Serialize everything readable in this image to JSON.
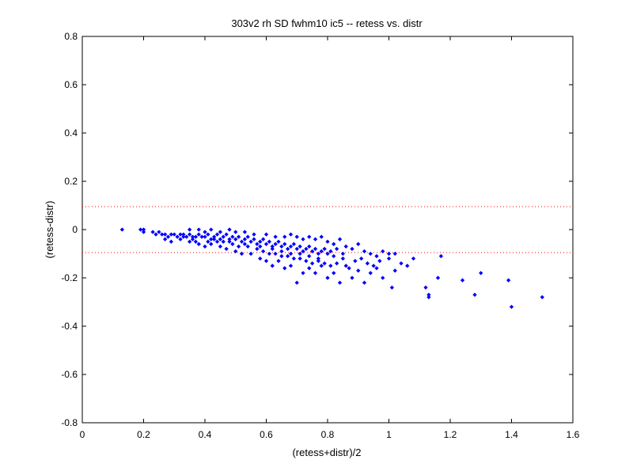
{
  "chart_data": {
    "type": "scatter",
    "title": "303v2 rh SD fwhm10 ic5 -- retess vs. distr",
    "xlabel": "(retess+distr)/2",
    "ylabel": "(retess-distr)",
    "xlim": [
      0,
      1.6
    ],
    "ylim": [
      -0.8,
      0.8
    ],
    "xticks": [
      0,
      0.2,
      0.4,
      0.6,
      0.8,
      1,
      1.2,
      1.4,
      1.6
    ],
    "yticks": [
      -0.8,
      -0.6,
      -0.4,
      -0.2,
      0,
      0.2,
      0.4,
      0.6,
      0.8
    ],
    "xtick_labels": [
      "0",
      "0.2",
      "0.4",
      "0.6",
      "0.8",
      "1",
      "1.2",
      "1.4",
      "1.6"
    ],
    "ytick_labels": [
      "-0.8",
      "-0.6",
      "-0.4",
      "-0.2",
      "0",
      "0.2",
      "0.4",
      "0.6",
      "0.8"
    ],
    "grid": false,
    "reference_lines": [
      {
        "y": 0.095,
        "style": "dotted",
        "color": "#ff0000"
      },
      {
        "y": -0.095,
        "style": "dotted",
        "color": "#ff0000"
      }
    ],
    "series": [
      {
        "color": "#0000ff",
        "marker": "diamond",
        "points": [
          [
            0.13,
            0.0
          ],
          [
            0.19,
            0.0
          ],
          [
            0.2,
            -0.01
          ],
          [
            0.2,
            0.0
          ],
          [
            0.23,
            -0.01
          ],
          [
            0.24,
            -0.02
          ],
          [
            0.25,
            -0.01
          ],
          [
            0.26,
            -0.02
          ],
          [
            0.27,
            -0.02
          ],
          [
            0.28,
            -0.03
          ],
          [
            0.29,
            -0.02
          ],
          [
            0.3,
            -0.02
          ],
          [
            0.31,
            -0.03
          ],
          [
            0.32,
            -0.02
          ],
          [
            0.33,
            -0.02
          ],
          [
            0.34,
            -0.03
          ],
          [
            0.35,
            -0.02
          ],
          [
            0.36,
            -0.03
          ],
          [
            0.37,
            -0.03
          ],
          [
            0.38,
            -0.02
          ],
          [
            0.39,
            -0.03
          ],
          [
            0.4,
            -0.03
          ],
          [
            0.41,
            -0.02
          ],
          [
            0.42,
            -0.04
          ],
          [
            0.43,
            -0.03
          ],
          [
            0.44,
            -0.02
          ],
          [
            0.45,
            -0.04
          ],
          [
            0.46,
            -0.03
          ],
          [
            0.47,
            -0.02
          ],
          [
            0.48,
            -0.04
          ],
          [
            0.49,
            -0.03
          ],
          [
            0.5,
            -0.04
          ],
          [
            0.51,
            -0.03
          ],
          [
            0.52,
            -0.05
          ],
          [
            0.53,
            -0.04
          ],
          [
            0.54,
            -0.03
          ],
          [
            0.55,
            -0.05
          ],
          [
            0.56,
            -0.04
          ],
          [
            0.57,
            -0.06
          ],
          [
            0.58,
            -0.05
          ],
          [
            0.59,
            -0.04
          ],
          [
            0.6,
            -0.06
          ],
          [
            0.61,
            -0.05
          ],
          [
            0.62,
            -0.07
          ],
          [
            0.63,
            -0.06
          ],
          [
            0.64,
            -0.05
          ],
          [
            0.65,
            -0.07
          ],
          [
            0.66,
            -0.06
          ],
          [
            0.67,
            -0.08
          ],
          [
            0.68,
            -0.07
          ],
          [
            0.69,
            -0.06
          ],
          [
            0.7,
            -0.08
          ],
          [
            0.71,
            -0.07
          ],
          [
            0.72,
            -0.09
          ],
          [
            0.73,
            -0.08
          ],
          [
            0.74,
            -0.07
          ],
          [
            0.75,
            -0.09
          ],
          [
            0.76,
            -0.08
          ],
          [
            0.77,
            -0.1
          ],
          [
            0.78,
            -0.09
          ],
          [
            0.8,
            -0.1
          ],
          [
            0.82,
            -0.11
          ],
          [
            0.85,
            -0.12
          ],
          [
            0.32,
            -0.04
          ],
          [
            0.35,
            -0.05
          ],
          [
            0.38,
            -0.06
          ],
          [
            0.4,
            -0.07
          ],
          [
            0.42,
            -0.06
          ],
          [
            0.45,
            -0.07
          ],
          [
            0.47,
            -0.08
          ],
          [
            0.5,
            -0.09
          ],
          [
            0.52,
            -0.1
          ],
          [
            0.55,
            -0.1
          ],
          [
            0.58,
            -0.12
          ],
          [
            0.6,
            -0.13
          ],
          [
            0.62,
            -0.15
          ],
          [
            0.64,
            -0.13
          ],
          [
            0.66,
            -0.16
          ],
          [
            0.68,
            -0.15
          ],
          [
            0.7,
            -0.22
          ],
          [
            0.72,
            -0.18
          ],
          [
            0.74,
            -0.16
          ],
          [
            0.76,
            -0.18
          ],
          [
            0.78,
            -0.15
          ],
          [
            0.8,
            -0.2
          ],
          [
            0.82,
            -0.18
          ],
          [
            0.84,
            -0.22
          ],
          [
            0.86,
            -0.15
          ],
          [
            0.88,
            -0.2
          ],
          [
            0.9,
            -0.17
          ],
          [
            0.92,
            -0.22
          ],
          [
            0.94,
            -0.18
          ],
          [
            0.96,
            -0.16
          ],
          [
            0.98,
            -0.2
          ],
          [
            1.0,
            -0.12
          ],
          [
            1.01,
            -0.24
          ],
          [
            1.02,
            -0.17
          ],
          [
            1.04,
            -0.14
          ],
          [
            1.06,
            -0.15
          ],
          [
            1.08,
            -0.12
          ],
          [
            0.35,
            -0.0
          ],
          [
            0.38,
            0.0
          ],
          [
            0.4,
            -0.01
          ],
          [
            0.42,
            0.0
          ],
          [
            0.45,
            -0.01
          ],
          [
            0.48,
            0.0
          ],
          [
            0.5,
            -0.01
          ],
          [
            0.53,
            -0.01
          ],
          [
            0.56,
            -0.02
          ],
          [
            0.6,
            -0.02
          ],
          [
            0.63,
            -0.03
          ],
          [
            0.66,
            -0.03
          ],
          [
            0.68,
            -0.02
          ],
          [
            0.7,
            -0.03
          ],
          [
            0.72,
            -0.04
          ],
          [
            0.74,
            -0.03
          ],
          [
            0.76,
            -0.04
          ],
          [
            0.78,
            -0.03
          ],
          [
            0.8,
            -0.05
          ],
          [
            0.82,
            -0.06
          ],
          [
            0.84,
            -0.04
          ],
          [
            0.86,
            -0.07
          ],
          [
            0.88,
            -0.08
          ],
          [
            0.9,
            -0.06
          ],
          [
            0.92,
            -0.09
          ],
          [
            0.94,
            -0.1
          ],
          [
            0.96,
            -0.11
          ],
          [
            0.98,
            -0.09
          ],
          [
            1.0,
            -0.1
          ],
          [
            1.02,
            -0.1
          ],
          [
            0.36,
            -0.04
          ],
          [
            0.41,
            -0.05
          ],
          [
            0.44,
            -0.05
          ],
          [
            0.46,
            -0.05
          ],
          [
            0.49,
            -0.06
          ],
          [
            0.51,
            -0.07
          ],
          [
            0.54,
            -0.07
          ],
          [
            0.57,
            -0.08
          ],
          [
            0.59,
            -0.09
          ],
          [
            0.61,
            -0.1
          ],
          [
            0.63,
            -0.1
          ],
          [
            0.65,
            -0.11
          ],
          [
            0.67,
            -0.11
          ],
          [
            0.69,
            -0.12
          ],
          [
            0.71,
            -0.12
          ],
          [
            0.73,
            -0.13
          ],
          [
            0.75,
            -0.14
          ],
          [
            0.77,
            -0.13
          ],
          [
            0.79,
            -0.14
          ],
          [
            0.81,
            -0.15
          ],
          [
            0.83,
            -0.14
          ],
          [
            0.87,
            -0.16
          ],
          [
            0.89,
            -0.13
          ],
          [
            0.91,
            -0.12
          ],
          [
            0.93,
            -0.14
          ],
          [
            0.95,
            -0.15
          ],
          [
            0.97,
            -0.13
          ],
          [
            0.27,
            -0.04
          ],
          [
            0.29,
            -0.05
          ],
          [
            0.33,
            -0.03
          ],
          [
            0.37,
            -0.05
          ],
          [
            0.43,
            -0.04
          ],
          [
            0.48,
            -0.05
          ],
          [
            0.53,
            -0.06
          ],
          [
            0.58,
            -0.07
          ],
          [
            0.62,
            -0.08
          ],
          [
            0.65,
            -0.09
          ],
          [
            0.68,
            -0.1
          ],
          [
            0.71,
            -0.1
          ],
          [
            0.74,
            -0.11
          ],
          [
            0.77,
            -0.12
          ],
          [
            0.79,
            -0.08
          ],
          [
            0.81,
            -0.09
          ],
          [
            0.83,
            -0.08
          ],
          [
            0.85,
            -0.1
          ],
          [
            1.12,
            -0.24
          ],
          [
            1.13,
            -0.27
          ],
          [
            1.13,
            -0.28
          ],
          [
            1.17,
            -0.11
          ],
          [
            1.16,
            -0.2
          ],
          [
            1.24,
            -0.21
          ],
          [
            1.28,
            -0.27
          ],
          [
            1.3,
            -0.18
          ],
          [
            1.39,
            -0.21
          ],
          [
            1.4,
            -0.32
          ],
          [
            1.5,
            -0.28
          ]
        ]
      }
    ]
  }
}
